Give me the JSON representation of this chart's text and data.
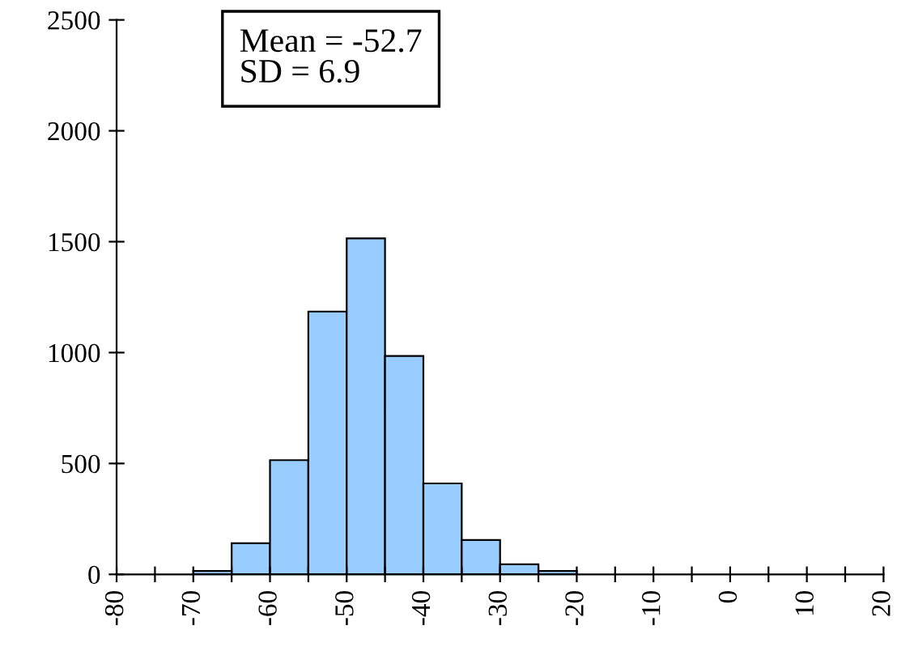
{
  "chart_data": {
    "type": "histogram",
    "bins": [
      -70,
      -65,
      -60,
      -55,
      -50,
      -45,
      -40,
      -35,
      -30,
      -25,
      -20
    ],
    "values": [
      15,
      140,
      515,
      1185,
      1515,
      985,
      410,
      155,
      45,
      15
    ],
    "color": "#99ccff",
    "xlim": [
      -80,
      20
    ],
    "xticks": [
      -80,
      {
        "value": -75,
        "label": null
      },
      -70,
      {
        "value": -65,
        "label": null
      },
      -60,
      {
        "value": -55,
        "label": null
      },
      -50,
      {
        "value": -45,
        "label": null
      },
      -40,
      {
        "value": -35,
        "label": null
      },
      -30,
      {
        "value": -25,
        "label": null
      },
      -20,
      {
        "value": -15,
        "label": null
      },
      -10,
      {
        "value": -5,
        "label": null
      },
      0,
      {
        "value": 5,
        "label": null
      },
      10,
      {
        "value": 15,
        "label": null
      },
      20
    ],
    "ylim": [
      0,
      2500
    ],
    "yticks": [
      0,
      500,
      1000,
      1500,
      2000,
      2500
    ],
    "grid": false,
    "annotations": [
      "Mean = -52.7\nSD = 6.9"
    ]
  }
}
